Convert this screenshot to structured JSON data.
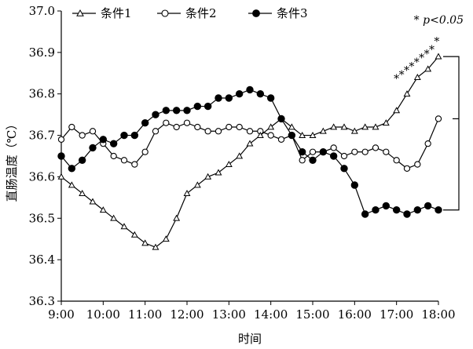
{
  "chart_data": {
    "type": "line",
    "title": "",
    "xlabel": "时间",
    "ylabel": "直肠温度（℃）",
    "x_ticks": [
      "9:00",
      "10:00",
      "11:00",
      "12:00",
      "13:00",
      "14:00",
      "15:00",
      "16:00",
      "17:00",
      "18:00"
    ],
    "xlim": [
      9,
      18
    ],
    "ylim": [
      36.3,
      37.0
    ],
    "y_ticks": [
      "36.3",
      "36.4",
      "36.5",
      "36.6",
      "36.7",
      "36.8",
      "36.9",
      "37.0"
    ],
    "grid": false,
    "legend_position": "top-left",
    "significance_note": "* p<0.05",
    "series": [
      {
        "name": "条件1",
        "marker": "triangle",
        "x": [
          9.0,
          9.25,
          9.5,
          9.75,
          10.0,
          10.25,
          10.5,
          10.75,
          11.0,
          11.25,
          11.5,
          11.75,
          12.0,
          12.25,
          12.5,
          12.75,
          13.0,
          13.25,
          13.5,
          13.75,
          14.0,
          14.25,
          14.5,
          14.75,
          15.0,
          15.25,
          15.5,
          15.75,
          16.0,
          16.25,
          16.5,
          16.75,
          17.0,
          17.25,
          17.5,
          17.75,
          18.0
        ],
        "y": [
          36.6,
          36.58,
          36.56,
          36.54,
          36.52,
          36.5,
          36.48,
          36.46,
          36.44,
          36.43,
          36.45,
          36.5,
          36.56,
          36.58,
          36.6,
          36.61,
          36.63,
          36.65,
          36.68,
          36.7,
          36.72,
          36.74,
          36.72,
          36.7,
          36.7,
          36.71,
          36.72,
          36.72,
          36.71,
          36.72,
          36.72,
          36.73,
          36.76,
          36.8,
          36.84,
          36.86,
          36.89
        ]
      },
      {
        "name": "条件2",
        "marker": "circle-open",
        "x": [
          9.0,
          9.25,
          9.5,
          9.75,
          10.0,
          10.25,
          10.5,
          10.75,
          11.0,
          11.25,
          11.5,
          11.75,
          12.0,
          12.25,
          12.5,
          12.75,
          13.0,
          13.25,
          13.5,
          13.75,
          14.0,
          14.25,
          14.5,
          14.75,
          15.0,
          15.25,
          15.5,
          15.75,
          16.0,
          16.25,
          16.5,
          16.75,
          17.0,
          17.25,
          17.5,
          17.75,
          18.0
        ],
        "y": [
          36.69,
          36.72,
          36.7,
          36.71,
          36.68,
          36.65,
          36.64,
          36.63,
          36.66,
          36.71,
          36.73,
          36.72,
          36.73,
          36.72,
          36.71,
          36.71,
          36.72,
          36.72,
          36.71,
          36.71,
          36.7,
          36.69,
          36.7,
          36.64,
          36.66,
          36.66,
          36.67,
          36.65,
          36.66,
          36.66,
          36.67,
          36.66,
          36.64,
          36.62,
          36.63,
          36.68,
          36.74
        ]
      },
      {
        "name": "条件3",
        "marker": "circle-filled",
        "x": [
          9.0,
          9.25,
          9.5,
          9.75,
          10.0,
          10.25,
          10.5,
          10.75,
          11.0,
          11.25,
          11.5,
          11.75,
          12.0,
          12.25,
          12.5,
          12.75,
          13.0,
          13.25,
          13.5,
          13.75,
          14.0,
          14.25,
          14.5,
          14.75,
          15.0,
          15.25,
          15.5,
          15.75,
          16.0,
          16.25,
          16.5,
          16.75,
          17.0,
          17.25,
          17.5,
          17.75,
          18.0
        ],
        "y": [
          36.65,
          36.62,
          36.64,
          36.67,
          36.69,
          36.68,
          36.7,
          36.7,
          36.73,
          36.75,
          36.76,
          36.76,
          36.76,
          36.77,
          36.77,
          36.79,
          36.79,
          36.8,
          36.81,
          36.8,
          36.79,
          36.74,
          36.7,
          36.66,
          36.64,
          36.66,
          36.65,
          36.62,
          36.58,
          36.51,
          36.52,
          36.53,
          36.52,
          36.51,
          36.52,
          36.53,
          36.52
        ]
      }
    ],
    "significance_markers": {
      "symbol": "*",
      "x": [
        17.0,
        17.12,
        17.24,
        17.36,
        17.48,
        17.6,
        17.72,
        17.84,
        17.96
      ],
      "y": [
        36.82,
        36.83,
        36.84,
        36.85,
        36.86,
        36.87,
        36.88,
        36.89,
        36.91
      ]
    },
    "bracket": {
      "x": 18.0,
      "y_top": 36.89,
      "y_middle": 36.74,
      "y_bottom": 36.52
    }
  }
}
